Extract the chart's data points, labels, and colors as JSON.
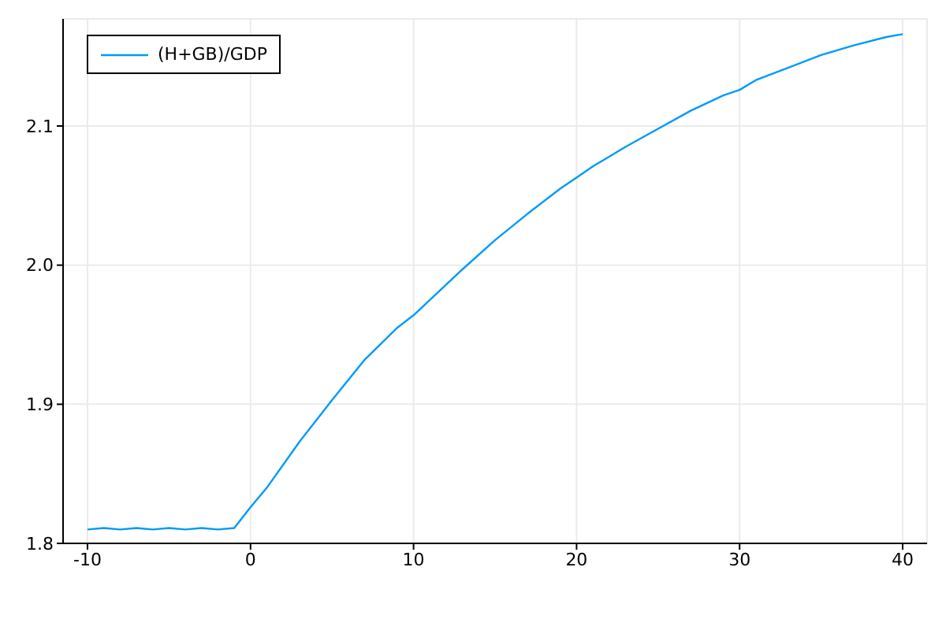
{
  "chart_data": {
    "type": "line",
    "x": [
      -10,
      -9,
      -8,
      -7,
      -6,
      -5,
      -4,
      -3,
      -2,
      -1,
      0,
      1,
      3,
      5,
      7,
      9,
      10,
      11,
      13,
      15,
      17,
      19,
      20,
      21,
      23,
      25,
      27,
      29,
      30,
      31,
      33,
      35,
      37,
      39,
      40
    ],
    "series": [
      {
        "name": "(H+GB)/GDP",
        "color": "#009af9",
        "values": [
          1.81,
          1.811,
          1.81,
          1.811,
          1.81,
          1.811,
          1.81,
          1.811,
          1.81,
          1.811,
          1.826,
          1.84,
          1.873,
          1.903,
          1.932,
          1.955,
          1.964,
          1.975,
          1.997,
          2.018,
          2.037,
          2.055,
          2.063,
          2.071,
          2.085,
          2.098,
          2.111,
          2.122,
          2.126,
          2.133,
          2.142,
          2.151,
          2.158,
          2.164,
          2.166
        ]
      }
    ],
    "xlim": [
      -11.5,
      41.5
    ],
    "ylim": [
      1.8,
      2.177
    ],
    "xticks": [
      -10,
      0,
      10,
      20,
      30,
      40
    ],
    "yticks": [
      1.8,
      1.9,
      {
        "value": 2.0,
        "label": "2.0"
      },
      2.1
    ],
    "grid": true,
    "legend": "top left",
    "marker": "none",
    "line_style": "solid"
  }
}
